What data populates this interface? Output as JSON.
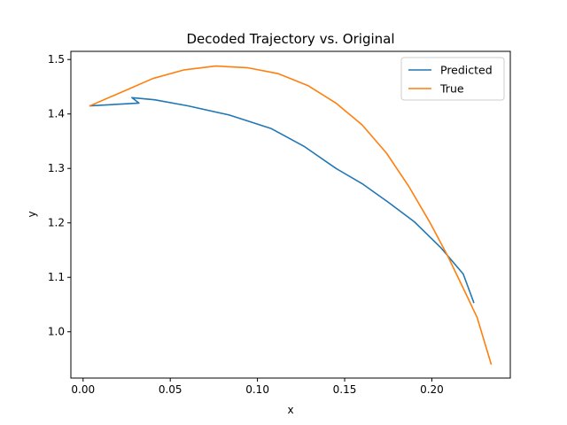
{
  "chart_data": {
    "type": "line",
    "title": "Decoded Trajectory vs. Original",
    "xlabel": "x",
    "ylabel": "y",
    "xlim": [
      -0.007,
      0.245
    ],
    "ylim": [
      0.915,
      1.515
    ],
    "xticks": [
      0.0,
      0.05,
      0.1,
      0.15,
      0.2
    ],
    "xtick_labels": [
      "0.00",
      "0.05",
      "0.10",
      "0.15",
      "0.20"
    ],
    "yticks": [
      1.0,
      1.1,
      1.2,
      1.3,
      1.4,
      1.5
    ],
    "ytick_labels": [
      "1.0",
      "1.1",
      "1.2",
      "1.3",
      "1.4",
      "1.5"
    ],
    "grid": false,
    "legend_position": "upper right",
    "series": [
      {
        "name": "Predicted",
        "color": "#1f77b4",
        "x": [
          0.004,
          0.032,
          0.028,
          0.041,
          0.06,
          0.084,
          0.108,
          0.127,
          0.145,
          0.16,
          0.175,
          0.19,
          0.205,
          0.218,
          0.224
        ],
        "y": [
          1.415,
          1.42,
          1.43,
          1.426,
          1.415,
          1.398,
          1.373,
          1.34,
          1.3,
          1.272,
          1.238,
          1.202,
          1.155,
          1.106,
          1.054
        ]
      },
      {
        "name": "True",
        "color": "#ff7f0e",
        "x": [
          0.004,
          0.022,
          0.04,
          0.058,
          0.076,
          0.094,
          0.112,
          0.129,
          0.145,
          0.16,
          0.174,
          0.187,
          0.199,
          0.209,
          0.218,
          0.226,
          0.234
        ],
        "y": [
          1.415,
          1.44,
          1.465,
          1.481,
          1.488,
          1.485,
          1.474,
          1.452,
          1.42,
          1.38,
          1.328,
          1.266,
          1.2,
          1.14,
          1.08,
          1.026,
          0.941
        ]
      }
    ]
  }
}
